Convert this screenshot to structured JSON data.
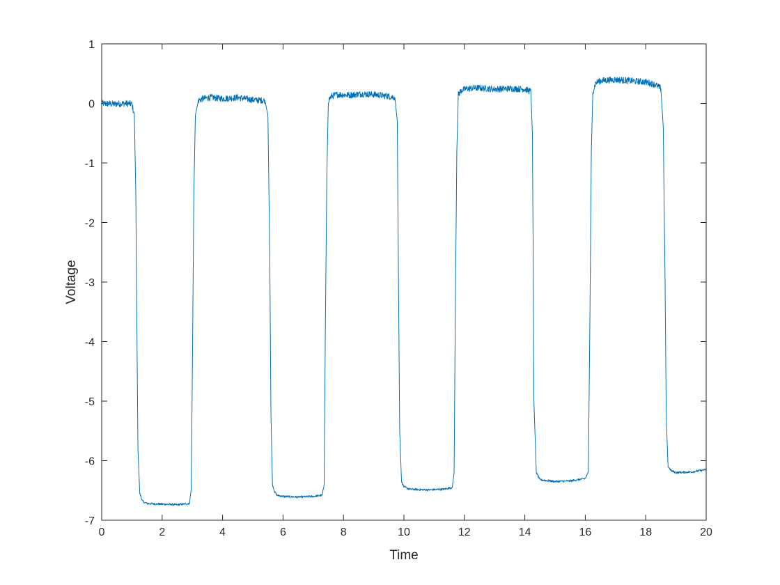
{
  "chart_data": {
    "type": "line",
    "title": "",
    "xlabel": "Time",
    "ylabel": "Voltage",
    "xlim": [
      0,
      20
    ],
    "ylim": [
      -7,
      1
    ],
    "xticks": [
      "0",
      "2",
      "4",
      "6",
      "8",
      "10",
      "12",
      "14",
      "16",
      "18",
      "20"
    ],
    "yticks": [
      "1",
      "0",
      "-1",
      "-2",
      "-3",
      "-4",
      "-5",
      "-6",
      "-7"
    ],
    "grid": false,
    "legend": "none",
    "box": true,
    "series": [
      {
        "color": "#0072BD",
        "x": [
          0,
          0.4,
          0.8,
          1.0,
          1.08,
          1.13,
          1.16,
          1.2,
          1.26,
          1.35,
          1.5,
          2.0,
          2.5,
          2.9,
          2.96,
          3.0,
          3.05,
          3.1,
          3.2,
          3.35,
          3.6,
          4.0,
          4.5,
          5.0,
          5.4,
          5.5,
          5.56,
          5.6,
          5.65,
          5.72,
          5.8,
          6.0,
          6.5,
          7.0,
          7.3,
          7.36,
          7.4,
          7.45,
          7.5,
          7.6,
          7.8,
          8.2,
          8.6,
          9.0,
          9.5,
          9.7,
          9.78,
          9.82,
          9.86,
          9.92,
          10.0,
          10.2,
          10.8,
          11.3,
          11.6,
          11.66,
          11.7,
          11.75,
          11.8,
          11.9,
          12.1,
          12.5,
          13.0,
          13.5,
          14.0,
          14.2,
          14.25,
          14.28,
          14.3,
          14.38,
          14.5,
          15.0,
          15.5,
          16.0,
          16.1,
          16.15,
          16.2,
          16.25,
          16.35,
          16.5,
          17.0,
          17.5,
          18.0,
          18.3,
          18.5,
          18.58,
          18.64,
          18.68,
          18.74,
          18.85,
          19.0,
          19.5,
          20.0
        ],
        "y": [
          0.0,
          -0.01,
          0.0,
          -0.01,
          -0.2,
          -1.5,
          -3.5,
          -5.8,
          -6.55,
          -6.68,
          -6.72,
          -6.73,
          -6.74,
          -6.72,
          -6.5,
          -4.5,
          -1.5,
          -0.2,
          0.05,
          0.08,
          0.1,
          0.08,
          0.1,
          0.06,
          0.05,
          -0.2,
          -2.5,
          -5.2,
          -6.4,
          -6.52,
          -6.58,
          -6.6,
          -6.61,
          -6.6,
          -6.58,
          -6.4,
          -3.8,
          -1.2,
          0.05,
          0.12,
          0.15,
          0.14,
          0.16,
          0.15,
          0.12,
          0.1,
          -0.3,
          -3.0,
          -5.5,
          -6.35,
          -6.44,
          -6.48,
          -6.49,
          -6.48,
          -6.45,
          -6.2,
          -3.5,
          -0.8,
          0.15,
          0.22,
          0.25,
          0.26,
          0.24,
          0.25,
          0.24,
          0.2,
          -0.5,
          -2.8,
          -5.0,
          -6.2,
          -6.32,
          -6.35,
          -6.34,
          -6.3,
          -6.2,
          -3.8,
          -0.8,
          0.2,
          0.35,
          0.38,
          0.4,
          0.38,
          0.36,
          0.32,
          0.25,
          -0.4,
          -3.0,
          -5.3,
          -6.1,
          -6.17,
          -6.2,
          -6.19,
          -6.15
        ]
      }
    ]
  }
}
